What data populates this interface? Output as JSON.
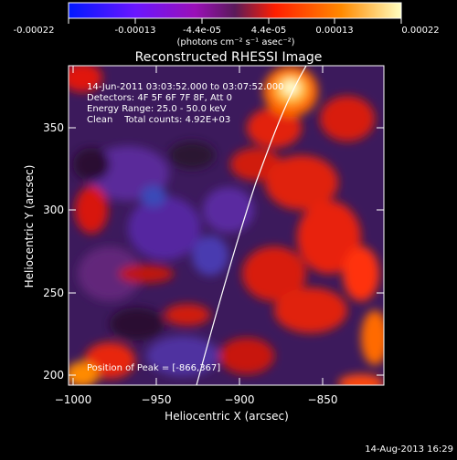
{
  "colorbar": {
    "tick_labels": [
      "-0.00022",
      "-0.00013",
      "-4.4e-05",
      "4.4e-05",
      "0.00013",
      "0.00022"
    ],
    "units": "(photons cm⁻² s⁻¹ asec⁻²)",
    "colors": [
      "#0018ff",
      "#6a16ff",
      "#9a10b8",
      "#6a1e6a",
      "#ff1e00",
      "#ff8a00",
      "#ffffc0"
    ]
  },
  "title": "Reconstructed RHESSI Image",
  "annotations": {
    "time_range": "14-Jun-2011 03:03:52.000 to 03:07:52.000",
    "detectors": "Detectors: 4F 5F 6F 7F 8F, Att 0",
    "energy": "Energy Range: 25.0 - 50.0 keV",
    "clean": "Clean    Total counts: 4.92E+03",
    "peak": "Position of Peak = [-866,367]"
  },
  "axes": {
    "xlabel": "Heliocentric X (arcsec)",
    "ylabel": "Heliocentric Y (arcsec)",
    "x_ticks": [
      "−1000",
      "−950",
      "−900",
      "−850"
    ],
    "y_ticks": [
      "200",
      "250",
      "300",
      "350"
    ],
    "x_range": [
      -1002,
      -812
    ],
    "y_range": [
      193,
      391
    ]
  },
  "timestamp": "14-Aug-2013 16:29"
}
